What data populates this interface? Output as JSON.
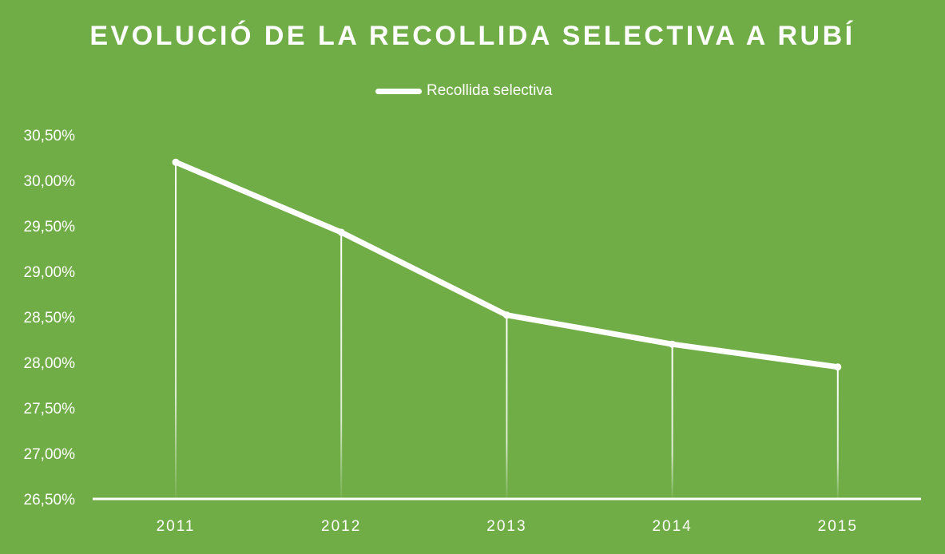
{
  "chart_data": {
    "type": "line",
    "title": "EVOLUCIÓ DE LA RECOLLIDA SELECTIVA A RUBÍ",
    "categories": [
      "2011",
      "2012",
      "2013",
      "2014",
      "2015"
    ],
    "series": [
      {
        "name": "Recollida selectiva",
        "values": [
          30.2,
          29.43,
          28.52,
          28.2,
          27.95
        ]
      }
    ],
    "ylim": [
      26.5,
      30.5
    ],
    "yticks": [
      "26,50%",
      "27,00%",
      "27,50%",
      "28,00%",
      "28,50%",
      "29,00%",
      "29,50%",
      "30,00%",
      "30,50%"
    ],
    "ytick_values": [
      26.5,
      27.0,
      27.5,
      28.0,
      28.5,
      29.0,
      29.5,
      30.0,
      30.5
    ],
    "legend_position": "top",
    "grid": false,
    "drop_lines": true,
    "colors": {
      "background": "#70AD47",
      "line": "#FFFFFF",
      "text": "#FFFFFF"
    }
  }
}
